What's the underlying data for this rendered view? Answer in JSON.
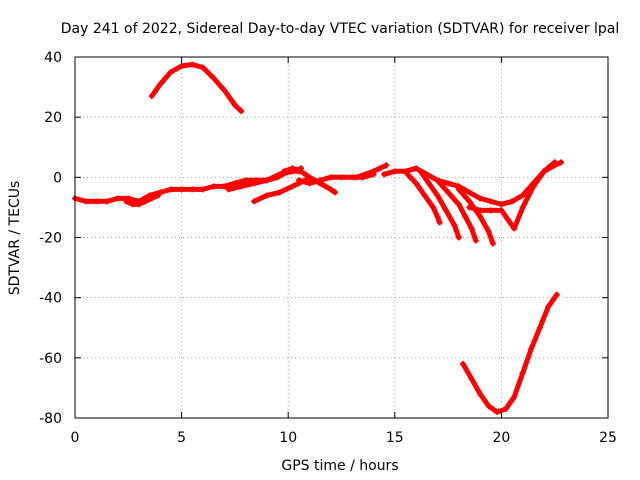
{
  "chart_data": {
    "type": "scatter",
    "title": "Day 241 of 2022, Sidereal Day-to-day VTEC variation (SDTVAR) for receiver lpal",
    "xlabel": "GPS time / hours",
    "ylabel": "SDTVAR / TECUs",
    "xlim": [
      0,
      25
    ],
    "ylim": [
      -80,
      40
    ],
    "grid": true,
    "x_ticks": [
      "0",
      "5",
      "10",
      "15",
      "20",
      "25"
    ],
    "y_ticks": [
      "40",
      "20",
      "0",
      "-20",
      "-40",
      "-60",
      "-80"
    ],
    "marker_color": "#ff0000",
    "series": [
      {
        "name": "track-main-left",
        "x": [
          0.0,
          0.5,
          1.0,
          1.5,
          2.0,
          2.5,
          3.0,
          3.5,
          4.0,
          4.5,
          5.0,
          5.5,
          6.0,
          6.5,
          7.0,
          7.5,
          8.0,
          8.5,
          9.0,
          9.5,
          10.0,
          10.5
        ],
        "y": [
          -7,
          -8,
          -8,
          -8,
          -7,
          -7,
          -8,
          -6,
          -5,
          -4,
          -4,
          -4,
          -4,
          -3,
          -3,
          -2,
          -1,
          -1,
          -1,
          0,
          2,
          2
        ]
      },
      {
        "name": "track-dip-early",
        "x": [
          2.4,
          2.7,
          3.0,
          3.3,
          3.6,
          3.9
        ],
        "y": [
          -8,
          -9,
          -9,
          -8,
          -7,
          -6
        ]
      },
      {
        "name": "track-arc-high",
        "x": [
          3.6,
          4.0,
          4.5,
          5.0,
          5.5,
          6.0,
          6.5,
          7.0,
          7.5,
          7.8
        ],
        "y": [
          27,
          31,
          35,
          37,
          37.5,
          36.5,
          33,
          29,
          24,
          22
        ]
      },
      {
        "name": "track-rise-mid",
        "x": [
          7.2,
          7.8,
          8.4,
          9.0,
          9.6,
          10.2,
          10.6
        ],
        "y": [
          -4,
          -3,
          -2,
          -1,
          1,
          2,
          3
        ]
      },
      {
        "name": "track-low-mid",
        "x": [
          8.4,
          9.0,
          9.6,
          10.2,
          10.8
        ],
        "y": [
          -8,
          -6,
          -5,
          -3,
          -1
        ]
      },
      {
        "name": "track-hump-10",
        "x": [
          9.8,
          10.2,
          10.6,
          11.0,
          11.5,
          12.0,
          12.2
        ],
        "y": [
          2,
          3,
          2,
          0,
          -2,
          -4,
          -5
        ]
      },
      {
        "name": "track-flat-mid",
        "x": [
          10.5,
          11.0,
          11.5,
          12.0,
          12.5,
          13.0,
          13.5,
          14.0
        ],
        "y": [
          -1,
          -2,
          -1,
          0,
          0,
          0,
          0,
          1
        ]
      },
      {
        "name": "track-up-14",
        "x": [
          13.2,
          13.6,
          14.0,
          14.3,
          14.6
        ],
        "y": [
          0,
          1,
          2,
          3,
          4
        ]
      },
      {
        "name": "track-main-right",
        "x": [
          14.5,
          15.0,
          15.5,
          16.0,
          16.5,
          17.0,
          17.5,
          18.0,
          18.5,
          19.0,
          19.5,
          20.0,
          20.5,
          21.0,
          21.5,
          22.0,
          22.5,
          22.8
        ],
        "y": [
          1,
          2,
          2,
          3,
          1,
          -1,
          -2,
          -3,
          -5,
          -7,
          -8,
          -9,
          -8,
          -6,
          -2,
          2,
          4,
          5
        ]
      },
      {
        "name": "track-drop-a",
        "x": [
          15.6,
          16.0,
          16.4,
          16.8,
          17.0,
          17.1
        ],
        "y": [
          1,
          -2,
          -6,
          -10,
          -13,
          -15
        ]
      },
      {
        "name": "track-drop-b",
        "x": [
          16.2,
          16.6,
          17.0,
          17.4,
          17.8,
          18.0
        ],
        "y": [
          2,
          -2,
          -6,
          -11,
          -16,
          -20
        ]
      },
      {
        "name": "track-drop-c",
        "x": [
          17.0,
          17.5,
          18.0,
          18.3,
          18.6,
          18.8
        ],
        "y": [
          -1,
          -5,
          -9,
          -13,
          -17,
          -21
        ]
      },
      {
        "name": "track-drop-d",
        "x": [
          18.0,
          18.5,
          19.0,
          19.4,
          19.6
        ],
        "y": [
          -4,
          -8,
          -13,
          -18,
          -22
        ]
      },
      {
        "name": "track-v-right",
        "x": [
          18.5,
          19.0,
          19.5,
          20.0,
          20.3,
          20.6,
          21.0,
          21.5,
          22.0,
          22.5
        ],
        "y": [
          -10,
          -11,
          -11,
          -11,
          -14,
          -17,
          -10,
          -3,
          2,
          5
        ]
      },
      {
        "name": "track-arc-low",
        "x": [
          18.2,
          18.6,
          19.0,
          19.4,
          19.8,
          20.2,
          20.6,
          21.0,
          21.4,
          21.8,
          22.2,
          22.6
        ],
        "y": [
          -62,
          -67,
          -72,
          -76,
          -78,
          -77,
          -73,
          -65,
          -57,
          -50,
          -43,
          -39
        ]
      }
    ]
  }
}
